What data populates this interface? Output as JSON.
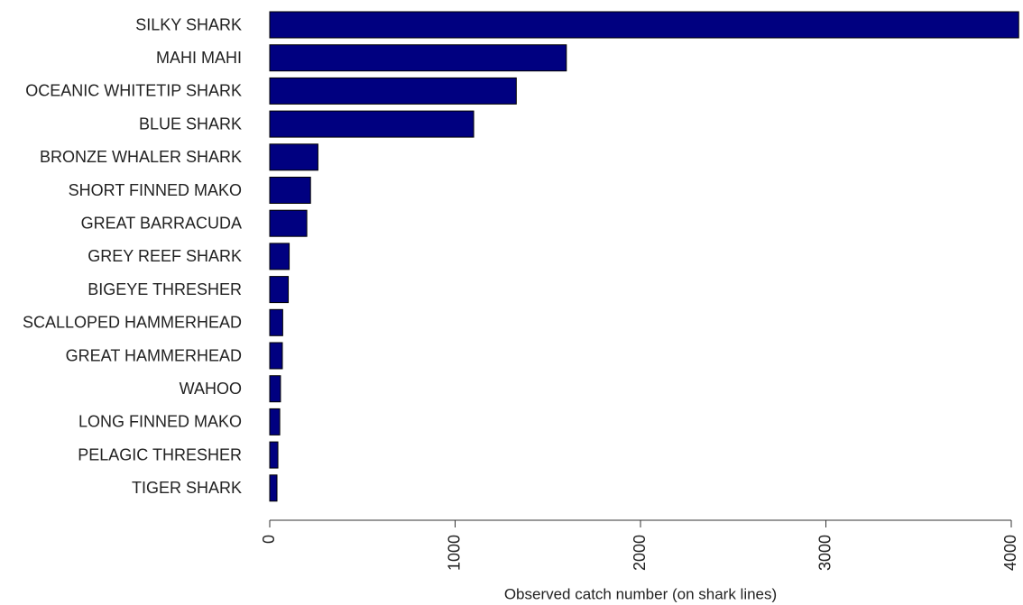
{
  "chart_data": {
    "type": "barh",
    "x_label": "Observed catch number (on shark lines)",
    "categories": [
      "SILKY SHARK",
      "MAHI MAHI",
      "OCEANIC WHITETIP SHARK",
      "BLUE SHARK",
      "BRONZE WHALER SHARK",
      "SHORT FINNED MAKO",
      "GREAT BARRACUDA",
      "GREY REEF SHARK",
      "BIGEYE THRESHER",
      "SCALLOPED HAMMERHEAD",
      "GREAT HAMMERHEAD",
      "WAHOO",
      "LONG FINNED MAKO",
      "PELAGIC THRESHER",
      "TIGER SHARK"
    ],
    "values": [
      4040,
      1600,
      1330,
      1100,
      260,
      220,
      200,
      105,
      100,
      70,
      68,
      58,
      54,
      44,
      39
    ],
    "color": "#000080",
    "xlim": [
      0,
      4000
    ],
    "xticks": [
      0,
      1000,
      2000,
      3000,
      4000
    ]
  }
}
